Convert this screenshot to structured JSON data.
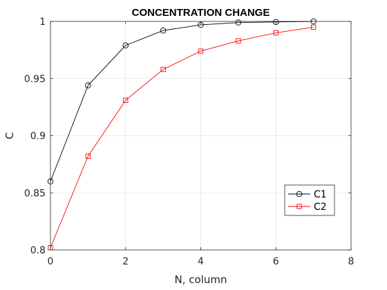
{
  "chart_data": {
    "type": "line",
    "title": "CONCENTRATION CHANGE",
    "xlabel": "N, column",
    "ylabel": "C",
    "xlim": [
      0,
      8
    ],
    "ylim": [
      0.8,
      1.0
    ],
    "xticks": [
      0,
      2,
      4,
      6,
      8
    ],
    "yticks": [
      0.8,
      0.85,
      0.9,
      0.95,
      1.0
    ],
    "xtick_labels": [
      "0",
      "2",
      "4",
      "6",
      "8"
    ],
    "ytick_labels": [
      "0.8",
      "0.85",
      "0.9",
      "0.95",
      "1"
    ],
    "grid": true,
    "legend_position": "bottom-right",
    "series": [
      {
        "name": "C1",
        "color": "#000000",
        "marker": "circle",
        "x": [
          0,
          1,
          2,
          3,
          4,
          5,
          6,
          7
        ],
        "values": [
          0.86,
          0.944,
          0.979,
          0.992,
          0.997,
          0.999,
          0.9995,
          1.0
        ]
      },
      {
        "name": "C2",
        "color": "#ff0000",
        "marker": "square",
        "x": [
          0,
          1,
          2,
          3,
          4,
          5,
          6,
          7
        ],
        "values": [
          0.802,
          0.882,
          0.931,
          0.958,
          0.974,
          0.983,
          0.99,
          0.995
        ]
      }
    ]
  }
}
